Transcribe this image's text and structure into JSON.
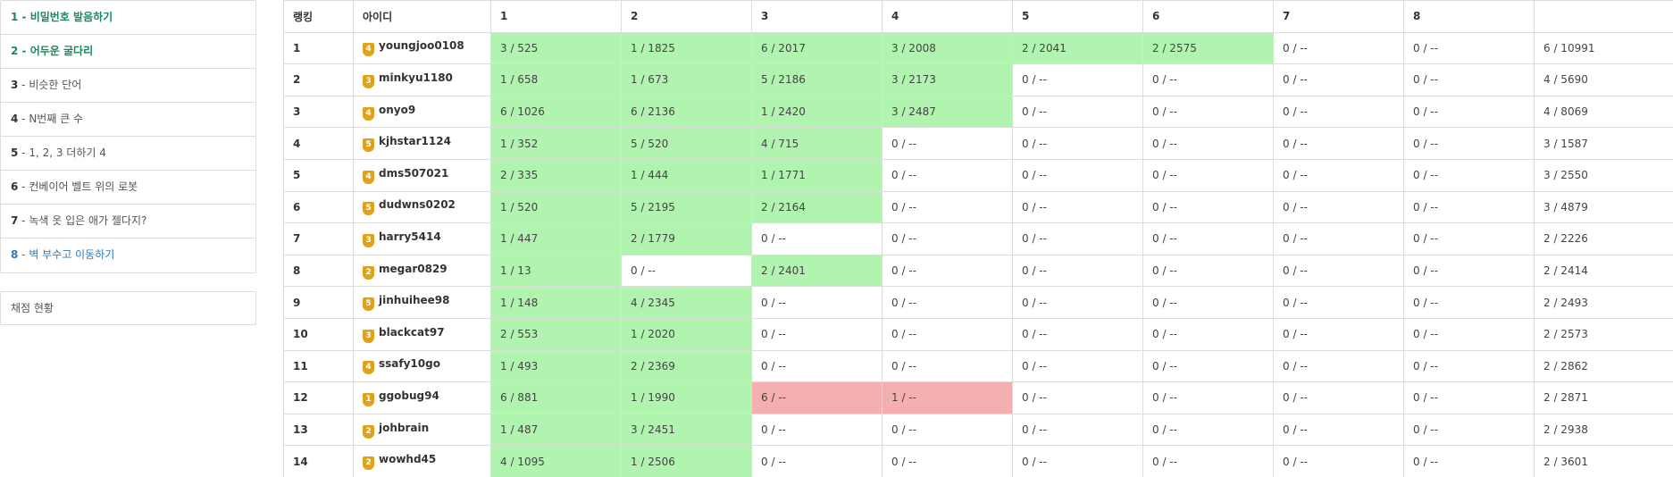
{
  "problems": [
    {
      "num": "1",
      "sep": " - ",
      "label": "비밀번호 발음하기",
      "state": "solved"
    },
    {
      "num": "2",
      "sep": " - ",
      "label": "어두운 굴다리",
      "state": "solved"
    },
    {
      "num": "3",
      "sep": " - ",
      "label": "비슷한 단어",
      "state": "normal"
    },
    {
      "num": "4",
      "sep": " - ",
      "label": "N번째 큰 수",
      "state": "normal"
    },
    {
      "num": "5",
      "sep": " - ",
      "label": "1, 2, 3 더하기 4",
      "state": "normal"
    },
    {
      "num": "6",
      "sep": " - ",
      "label": "컨베이어 벨트 위의 로봇",
      "state": "normal"
    },
    {
      "num": "7",
      "sep": " - ",
      "label": "녹색 옷 입은 애가 젤다지?",
      "state": "normal"
    },
    {
      "num": "8",
      "sep": " - ",
      "label": "벽 부수고 이동하기",
      "state": "active"
    }
  ],
  "status_label": "채점 현황",
  "table": {
    "headers": [
      "랭킹",
      "아이디",
      "1",
      "2",
      "3",
      "4",
      "5",
      "6",
      "7",
      "8",
      ""
    ],
    "rows": [
      {
        "rank": "1",
        "tier": "4",
        "user": "youngjoo0108",
        "cells": [
          [
            "3 / 525",
            "ok"
          ],
          [
            "1 / 1825",
            "ok"
          ],
          [
            "6 / 2017",
            "ok"
          ],
          [
            "3 / 2008",
            "ok"
          ],
          [
            "2 / 2041",
            "ok"
          ],
          [
            "2 / 2575",
            "ok"
          ],
          [
            "0 / --",
            ""
          ],
          [
            "0 / --",
            ""
          ]
        ],
        "total": "6 / 10991"
      },
      {
        "rank": "2",
        "tier": "3",
        "user": "minkyu1180",
        "cells": [
          [
            "1 / 658",
            "ok"
          ],
          [
            "1 / 673",
            "ok"
          ],
          [
            "5 / 2186",
            "ok"
          ],
          [
            "3 / 2173",
            "ok"
          ],
          [
            "0 / --",
            ""
          ],
          [
            "0 / --",
            ""
          ],
          [
            "0 / --",
            ""
          ],
          [
            "0 / --",
            ""
          ]
        ],
        "total": "4 / 5690"
      },
      {
        "rank": "3",
        "tier": "4",
        "user": "onyo9",
        "cells": [
          [
            "6 / 1026",
            "ok"
          ],
          [
            "6 / 2136",
            "ok"
          ],
          [
            "1 / 2420",
            "ok"
          ],
          [
            "3 / 2487",
            "ok"
          ],
          [
            "0 / --",
            ""
          ],
          [
            "0 / --",
            ""
          ],
          [
            "0 / --",
            ""
          ],
          [
            "0 / --",
            ""
          ]
        ],
        "total": "4 / 8069"
      },
      {
        "rank": "4",
        "tier": "5",
        "user": "kjhstar1124",
        "cells": [
          [
            "1 / 352",
            "ok"
          ],
          [
            "5 / 520",
            "ok"
          ],
          [
            "4 / 715",
            "ok"
          ],
          [
            "0 / --",
            ""
          ],
          [
            "0 / --",
            ""
          ],
          [
            "0 / --",
            ""
          ],
          [
            "0 / --",
            ""
          ],
          [
            "0 / --",
            ""
          ]
        ],
        "total": "3 / 1587"
      },
      {
        "rank": "5",
        "tier": "4",
        "user": "dms507021",
        "cells": [
          [
            "2 / 335",
            "ok"
          ],
          [
            "1 / 444",
            "ok"
          ],
          [
            "1 / 1771",
            "ok"
          ],
          [
            "0 / --",
            ""
          ],
          [
            "0 / --",
            ""
          ],
          [
            "0 / --",
            ""
          ],
          [
            "0 / --",
            ""
          ],
          [
            "0 / --",
            ""
          ]
        ],
        "total": "3 / 2550"
      },
      {
        "rank": "6",
        "tier": "5",
        "user": "dudwns0202",
        "cells": [
          [
            "1 / 520",
            "ok"
          ],
          [
            "5 / 2195",
            "ok"
          ],
          [
            "2 / 2164",
            "ok"
          ],
          [
            "0 / --",
            ""
          ],
          [
            "0 / --",
            ""
          ],
          [
            "0 / --",
            ""
          ],
          [
            "0 / --",
            ""
          ],
          [
            "0 / --",
            ""
          ]
        ],
        "total": "3 / 4879"
      },
      {
        "rank": "7",
        "tier": "3",
        "user": "harry5414",
        "cells": [
          [
            "1 / 447",
            "ok"
          ],
          [
            "2 / 1779",
            "ok"
          ],
          [
            "0 / --",
            ""
          ],
          [
            "0 / --",
            ""
          ],
          [
            "0 / --",
            ""
          ],
          [
            "0 / --",
            ""
          ],
          [
            "0 / --",
            ""
          ],
          [
            "0 / --",
            ""
          ]
        ],
        "total": "2 / 2226"
      },
      {
        "rank": "8",
        "tier": "2",
        "user": "megar0829",
        "cells": [
          [
            "1 / 13",
            "ok"
          ],
          [
            "0 / --",
            ""
          ],
          [
            "2 / 2401",
            "ok"
          ],
          [
            "0 / --",
            ""
          ],
          [
            "0 / --",
            ""
          ],
          [
            "0 / --",
            ""
          ],
          [
            "0 / --",
            ""
          ],
          [
            "0 / --",
            ""
          ]
        ],
        "total": "2 / 2414"
      },
      {
        "rank": "9",
        "tier": "5",
        "user": "jinhuihee98",
        "cells": [
          [
            "1 / 148",
            "ok"
          ],
          [
            "4 / 2345",
            "ok"
          ],
          [
            "0 / --",
            ""
          ],
          [
            "0 / --",
            ""
          ],
          [
            "0 / --",
            ""
          ],
          [
            "0 / --",
            ""
          ],
          [
            "0 / --",
            ""
          ],
          [
            "0 / --",
            ""
          ]
        ],
        "total": "2 / 2493"
      },
      {
        "rank": "10",
        "tier": "3",
        "user": "blackcat97",
        "cells": [
          [
            "2 / 553",
            "ok"
          ],
          [
            "1 / 2020",
            "ok"
          ],
          [
            "0 / --",
            ""
          ],
          [
            "0 / --",
            ""
          ],
          [
            "0 / --",
            ""
          ],
          [
            "0 / --",
            ""
          ],
          [
            "0 / --",
            ""
          ],
          [
            "0 / --",
            ""
          ]
        ],
        "total": "2 / 2573"
      },
      {
        "rank": "11",
        "tier": "4",
        "user": "ssafy10go",
        "cells": [
          [
            "1 / 493",
            "ok"
          ],
          [
            "2 / 2369",
            "ok"
          ],
          [
            "0 / --",
            ""
          ],
          [
            "0 / --",
            ""
          ],
          [
            "0 / --",
            ""
          ],
          [
            "0 / --",
            ""
          ],
          [
            "0 / --",
            ""
          ],
          [
            "0 / --",
            ""
          ]
        ],
        "total": "2 / 2862"
      },
      {
        "rank": "12",
        "tier": "1",
        "user": "ggobug94",
        "cells": [
          [
            "6 / 881",
            "ok"
          ],
          [
            "1 / 1990",
            "ok"
          ],
          [
            "6 / --",
            "fail"
          ],
          [
            "1 / --",
            "fail"
          ],
          [
            "0 / --",
            ""
          ],
          [
            "0 / --",
            ""
          ],
          [
            "0 / --",
            ""
          ],
          [
            "0 / --",
            ""
          ]
        ],
        "total": "2 / 2871"
      },
      {
        "rank": "13",
        "tier": "2",
        "user": "johbrain",
        "cells": [
          [
            "1 / 487",
            "ok"
          ],
          [
            "3 / 2451",
            "ok"
          ],
          [
            "0 / --",
            ""
          ],
          [
            "0 / --",
            ""
          ],
          [
            "0 / --",
            ""
          ],
          [
            "0 / --",
            ""
          ],
          [
            "0 / --",
            ""
          ],
          [
            "0 / --",
            ""
          ]
        ],
        "total": "2 / 2938"
      },
      {
        "rank": "14",
        "tier": "2",
        "user": "wowhd45",
        "cells": [
          [
            "4 / 1095",
            "ok"
          ],
          [
            "1 / 2506",
            "ok"
          ],
          [
            "0 / --",
            ""
          ],
          [
            "0 / --",
            ""
          ],
          [
            "0 / --",
            ""
          ],
          [
            "0 / --",
            ""
          ],
          [
            "0 / --",
            ""
          ],
          [
            "0 / --",
            ""
          ]
        ],
        "total": "2 / 3601"
      }
    ]
  },
  "colors": {
    "solved_cell": "#b0f4b0",
    "failed_cell": "#f4b0b0",
    "tier_badge": "#e0a21b",
    "solved_text": "#1a8a5a",
    "active_text": "#2a7ab8"
  },
  "icons": {
    "tier_badge": "tier-badge-icon"
  }
}
